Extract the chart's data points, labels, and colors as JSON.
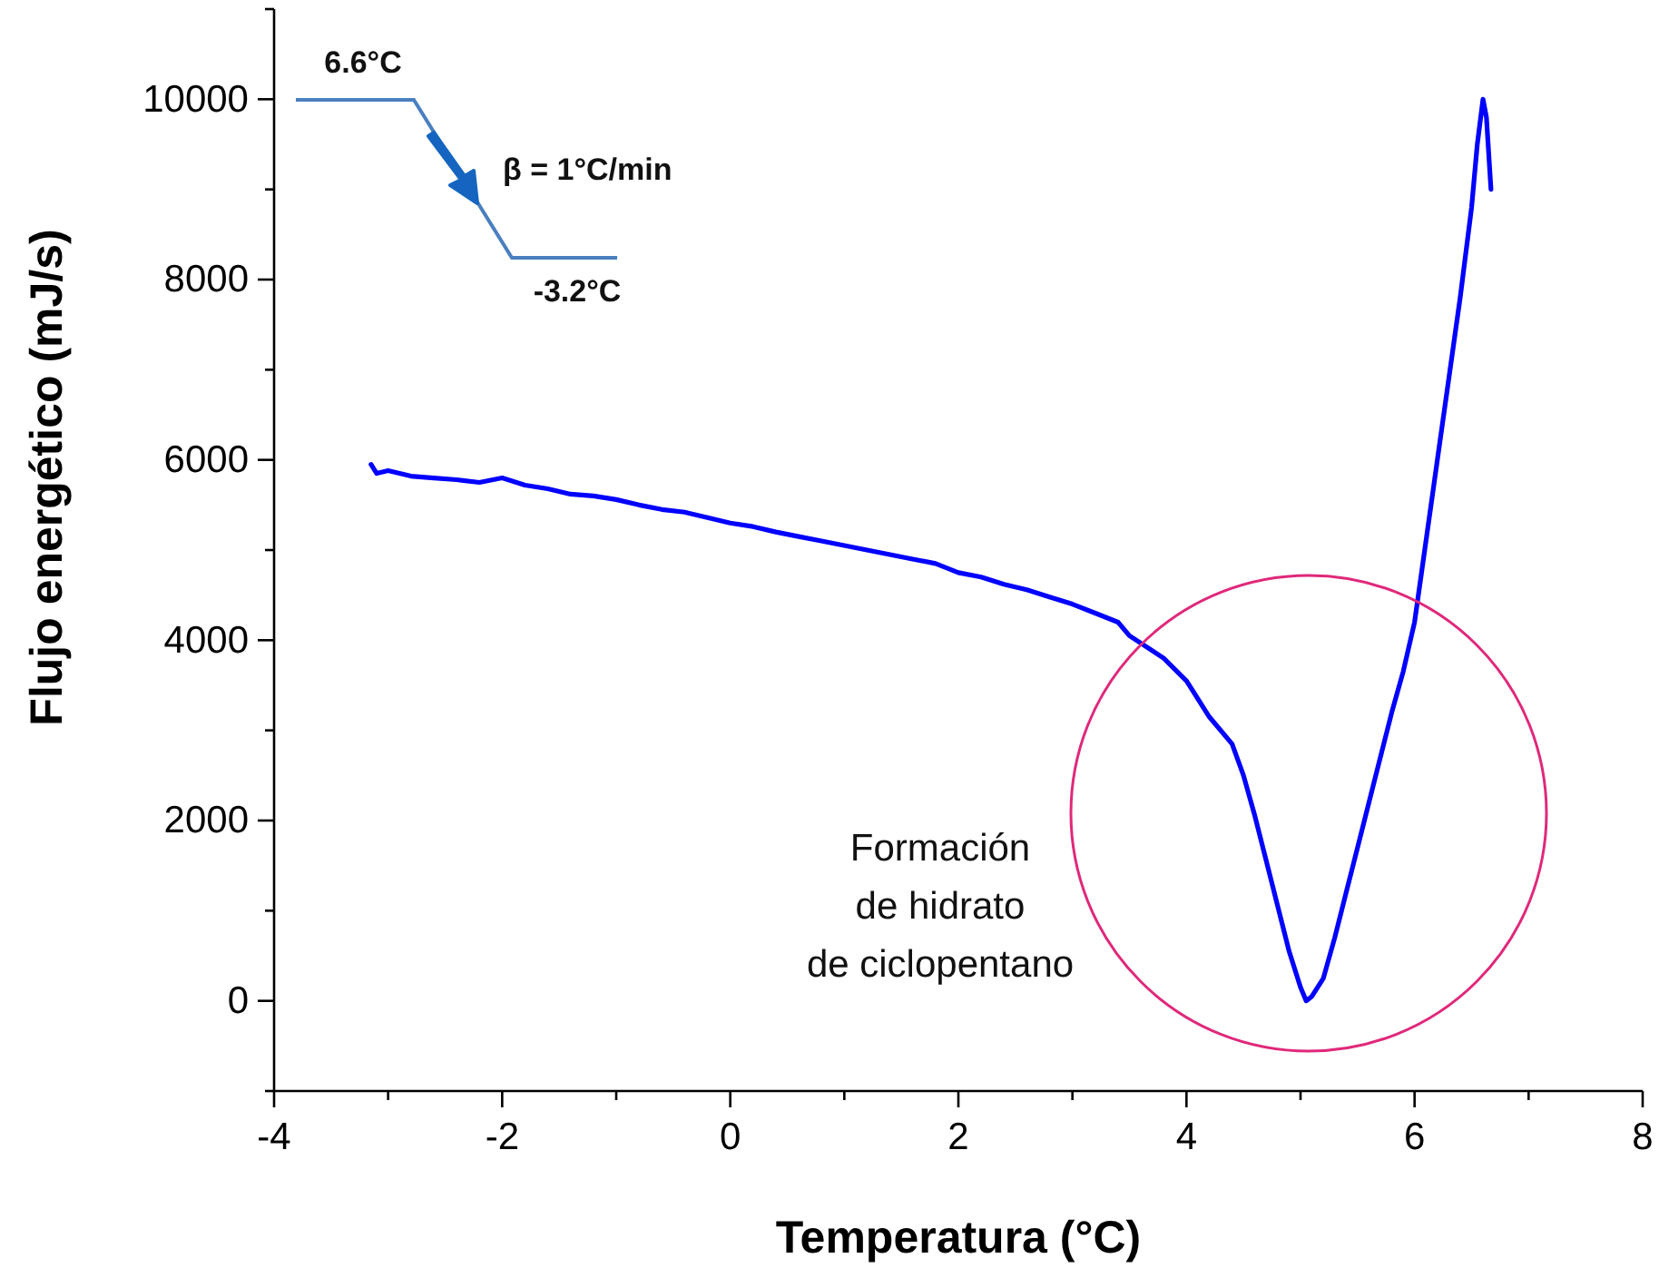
{
  "chart_data": {
    "type": "line",
    "xlabel": "Temperatura (°C)",
    "ylabel": "Flujo energético (mJ/s)",
    "xlim": [
      -4,
      8
    ],
    "xticks": [
      -4,
      {
        "value": -3,
        "label": null
      },
      -2,
      {
        "value": -1,
        "label": null
      },
      0,
      {
        "value": 1,
        "label": null
      },
      2,
      {
        "value": 3,
        "label": null
      },
      4,
      {
        "value": 5,
        "label": null
      },
      6,
      {
        "value": 7,
        "label": null
      },
      8
    ],
    "ylim": [
      -1000,
      11000
    ],
    "yticks": [
      {
        "value": -1000,
        "label": null
      },
      0,
      {
        "value": 1000,
        "label": null
      },
      2000,
      {
        "value": 3000,
        "label": null
      },
      4000,
      {
        "value": 5000,
        "label": null
      },
      6000,
      {
        "value": 7000,
        "label": null
      },
      8000,
      {
        "value": 9000,
        "label": null
      },
      10000,
      {
        "value": 11000,
        "label": null
      }
    ],
    "grid": false,
    "marker": "none",
    "line_style": "solid",
    "series": [
      {
        "color": "#0000ff",
        "x": [
          -3.15,
          -3.1,
          -3.0,
          -2.8,
          -2.6,
          -2.4,
          -2.2,
          -2.0,
          -1.8,
          -1.6,
          -1.4,
          -1.2,
          -1.0,
          -0.8,
          -0.6,
          -0.4,
          -0.2,
          0,
          0.2,
          0.4,
          0.6,
          0.8,
          1.0,
          1.2,
          1.4,
          1.6,
          1.8,
          2.0,
          2.2,
          2.4,
          2.6,
          2.8,
          3.0,
          3.2,
          3.4,
          3.5,
          3.8,
          4.0,
          4.2,
          4.4,
          4.5,
          4.6,
          4.7,
          4.8,
          4.9,
          5.0,
          5.05,
          5.1,
          5.2,
          5.3,
          5.4,
          5.5,
          5.6,
          5.7,
          5.8,
          5.9,
          6.0,
          6.1,
          6.2,
          6.3,
          6.4,
          6.5,
          6.55,
          6.6,
          6.63,
          6.67
        ],
        "values": [
          5950,
          5850,
          5880,
          5820,
          5800,
          5780,
          5750,
          5800,
          5720,
          5680,
          5620,
          5600,
          5560,
          5500,
          5450,
          5420,
          5360,
          5300,
          5260,
          5200,
          5150,
          5100,
          5050,
          5000,
          4950,
          4900,
          4850,
          4750,
          4700,
          4620,
          4560,
          4480,
          4400,
          4300,
          4200,
          4050,
          3800,
          3550,
          3150,
          2850,
          2500,
          2050,
          1550,
          1050,
          550,
          150,
          0,
          50,
          250,
          700,
          1200,
          1700,
          2200,
          2700,
          3200,
          3650,
          4200,
          5100,
          6000,
          6900,
          7800,
          8800,
          9500,
          10000,
          9800,
          9000
        ]
      }
    ],
    "annotations": [
      "6.6°C",
      "β = 1°C/min",
      "-3.2°C",
      "Formación\nde hidrato\nde ciclopentano"
    ]
  }
}
